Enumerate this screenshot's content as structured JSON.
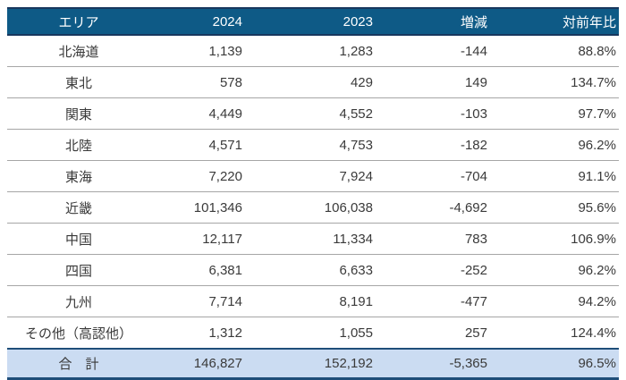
{
  "colors": {
    "header_bg": "#0E5A86",
    "header_text": "#FFFFFF",
    "header_border": "#17375E",
    "row_divider": "#A6A6A6",
    "total_bg": "#CBDCF2",
    "total_border": "#1F4E79",
    "body_text": "#3A3A3A"
  },
  "chart_data": {
    "type": "table",
    "title": "",
    "columns": [
      "エリア",
      "2024",
      "2023",
      "増減",
      "対前年比"
    ],
    "rows": [
      [
        "北海道",
        "1,139",
        "1,283",
        "-144",
        "88.8%"
      ],
      [
        "東北",
        "578",
        "429",
        "149",
        "134.7%"
      ],
      [
        "関東",
        "4,449",
        "4,552",
        "-103",
        "97.7%"
      ],
      [
        "北陸",
        "4,571",
        "4,753",
        "-182",
        "96.2%"
      ],
      [
        "東海",
        "7,220",
        "7,924",
        "-704",
        "91.1%"
      ],
      [
        "近畿",
        "101,346",
        "106,038",
        "-4,692",
        "95.6%"
      ],
      [
        "中国",
        "12,117",
        "11,334",
        "783",
        "106.9%"
      ],
      [
        "四国",
        "6,381",
        "6,633",
        "-252",
        "96.2%"
      ],
      [
        "九州",
        "7,714",
        "8,191",
        "-477",
        "94.2%"
      ],
      [
        "その他（高認他）",
        "1,312",
        "1,055",
        "257",
        "124.4%"
      ]
    ],
    "total_row": [
      "合　計",
      "146,827",
      "152,192",
      "-5,365",
      "96.5%"
    ],
    "layout": {
      "first_column_align": "center",
      "value_columns_align": "right",
      "grid": "horizontal-only"
    }
  }
}
